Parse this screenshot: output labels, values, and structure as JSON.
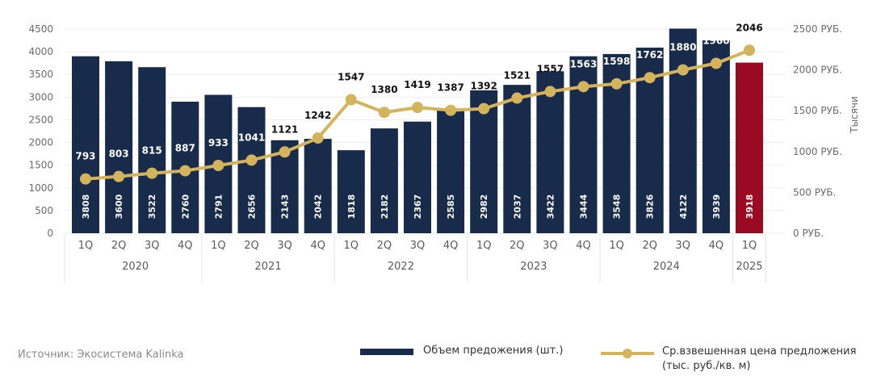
{
  "chart_data": {
    "type": "bar",
    "categories": [
      "1Q",
      "2Q",
      "3Q",
      "4Q",
      "1Q",
      "2Q",
      "3Q",
      "4Q",
      "1Q",
      "2Q",
      "3Q",
      "4Q",
      "1Q",
      "2Q",
      "3Q",
      "4Q",
      "1Q",
      "2Q",
      "3Q",
      "4Q",
      "1Q"
    ],
    "years": [
      {
        "label": "2020",
        "count": 4
      },
      {
        "label": "2021",
        "count": 4
      },
      {
        "label": "2022",
        "count": 4
      },
      {
        "label": "2023",
        "count": 4
      },
      {
        "label": "2024",
        "count": 4
      },
      {
        "label": "2025",
        "count": 1
      }
    ],
    "series": [
      {
        "name": "Объем предожения (шт.)",
        "type": "bar",
        "axis": "left",
        "color": "#192b4b",
        "highlight_color": "#9b0a23",
        "highlight_index": 20,
        "values": [
          3808,
          3600,
          3522,
          2760,
          2791,
          2656,
          2143,
          2042,
          1818,
          2182,
          2367,
          2585,
          2982,
          2037,
          3422,
          3444,
          3548,
          3826,
          4122,
          3939,
          3918
        ],
        "display_heights": [
          3900,
          3790,
          3660,
          2900,
          3050,
          2780,
          2050,
          2080,
          1830,
          2310,
          2460,
          2750,
          3150,
          3270,
          3570,
          3900,
          3950,
          4090,
          4510,
          4250,
          3760
        ]
      },
      {
        "name": "Ср.взвешенная цена предложения (тыс. руб./кв. м)",
        "type": "line",
        "axis": "right",
        "color": "#d4b35d",
        "values": [
          793,
          803,
          815,
          887,
          933,
          1041,
          1121,
          1242,
          1547,
          1380,
          1419,
          1387,
          1392,
          1521,
          1557,
          1563,
          1598,
          1762,
          1880,
          1960,
          2046
        ],
        "display_values": [
          665,
          695,
          735,
          765,
          830,
          895,
          995,
          1165,
          1635,
          1480,
          1540,
          1505,
          1525,
          1655,
          1735,
          1795,
          1830,
          1905,
          2000,
          2080,
          2240
        ]
      }
    ],
    "left_axis": {
      "ticks": [
        "0",
        "500",
        "1000",
        "1500",
        "2000",
        "2500",
        "3000",
        "3500",
        "4000",
        "4500"
      ],
      "ylim": [
        0,
        4500
      ]
    },
    "right_axis": {
      "ticks": [
        "0 РУБ.",
        "500 РУБ.",
        "1000 РУБ.",
        "1500 РУБ.",
        "2000 РУБ.",
        "2500 РУБ."
      ],
      "ylim": [
        0,
        2500
      ],
      "label": "Тысячи"
    },
    "grid": true,
    "legend_placement": "bottom"
  },
  "source": "Источник: Экосистема Kalinka",
  "legend": {
    "bar_label": "Объем предожения (шт.)",
    "line_label_1": "Ср.взвешенная цена предложения",
    "line_label_2": "(тыс. руб./кв. м)"
  }
}
